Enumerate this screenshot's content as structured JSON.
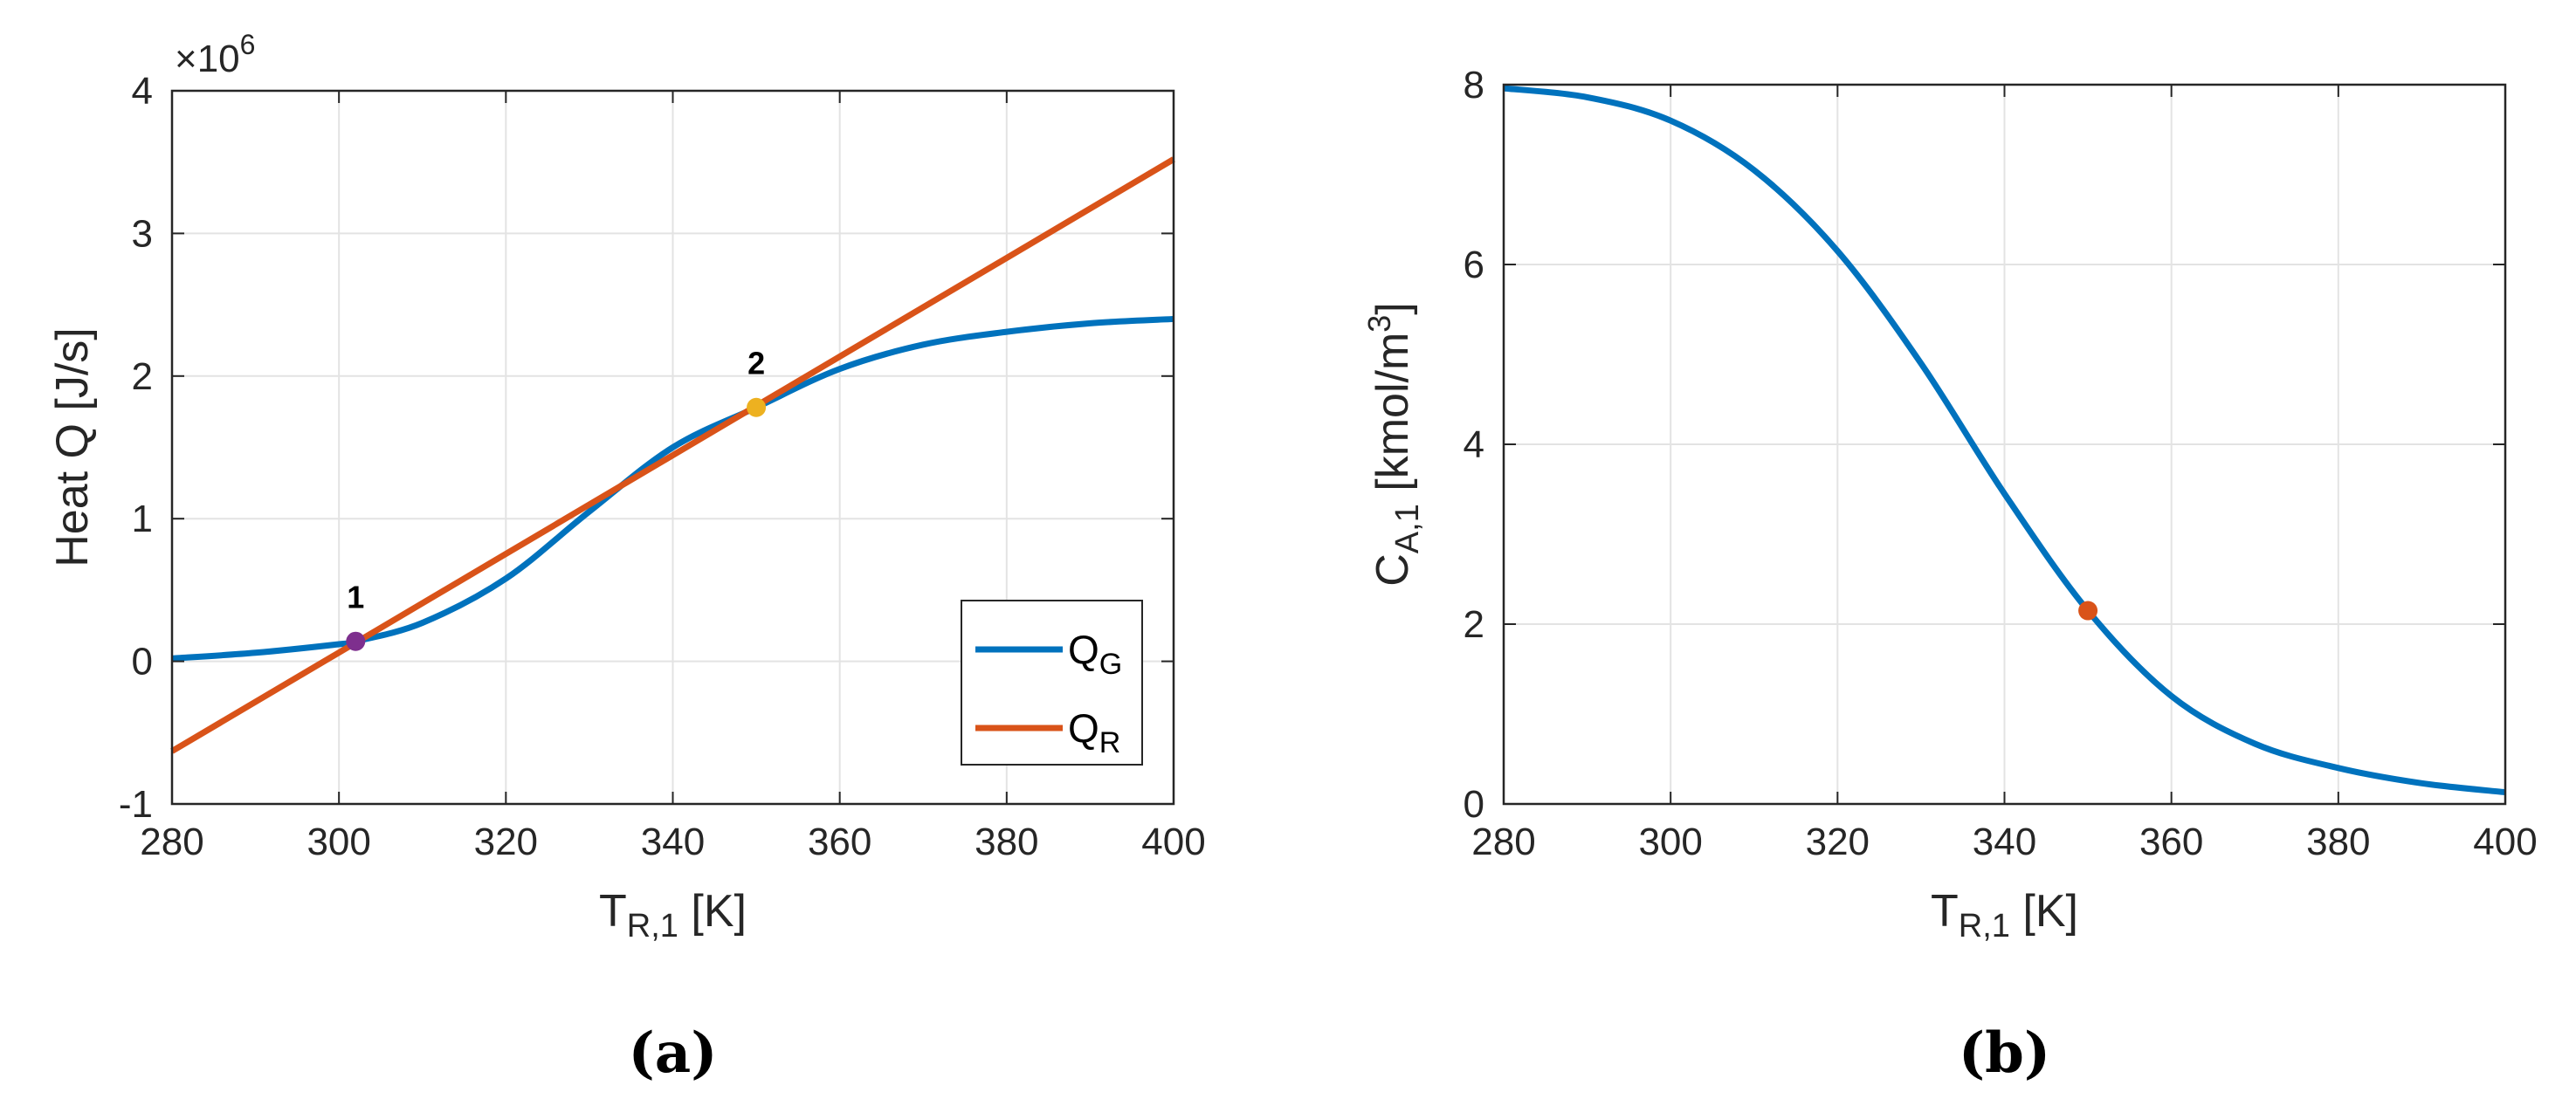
{
  "chart_data": [
    {
      "type": "line",
      "panel_label": "(a)",
      "xlabel": {
        "main": "T",
        "sub": "R,1",
        "unit": " [K]"
      },
      "ylabel": "Heat Q [J/s]",
      "y_exponent": {
        "base": "×10",
        "power": "6"
      },
      "xlim": [
        280,
        400
      ],
      "ylim": [
        -1,
        4
      ],
      "xticks": [
        280,
        300,
        320,
        340,
        360,
        380,
        400
      ],
      "yticks": [
        -1,
        0,
        1,
        2,
        3,
        4
      ],
      "grid": true,
      "legend_position": "bottom-right",
      "series": [
        {
          "name": "Q_G",
          "label_main": "Q",
          "label_sub": "G",
          "color": "#0072BD",
          "x": [
            280,
            290,
            300,
            302,
            310,
            320,
            330,
            340,
            350,
            360,
            370,
            380,
            390,
            400
          ],
          "values": [
            0.02,
            0.06,
            0.12,
            0.14,
            0.27,
            0.58,
            1.05,
            1.5,
            1.78,
            2.05,
            2.22,
            2.31,
            2.37,
            2.4
          ]
        },
        {
          "name": "Q_R",
          "label_main": "Q",
          "label_sub": "R",
          "color": "#D95319",
          "x": [
            280,
            400
          ],
          "values": [
            -0.63,
            3.52
          ]
        }
      ],
      "points": [
        {
          "label": "1",
          "x": 302,
          "y": 0.14,
          "color": "#7E2F8E"
        },
        {
          "label": "2",
          "x": 350,
          "y": 1.78,
          "color": "#EDB120"
        }
      ]
    },
    {
      "type": "line",
      "panel_label": "(b)",
      "xlabel": {
        "main": "T",
        "sub": "R,1",
        "unit": " [K]"
      },
      "ylabel": {
        "main": "C",
        "sub": "A,1",
        "unit_pre": " [kmol/m",
        "sup": "3",
        "unit_post": "]"
      },
      "xlim": [
        280,
        400
      ],
      "ylim": [
        0,
        8
      ],
      "xticks": [
        280,
        300,
        320,
        340,
        360,
        380,
        400
      ],
      "yticks": [
        0,
        2,
        4,
        6,
        8
      ],
      "grid": true,
      "series": [
        {
          "name": "C_A1",
          "color": "#0072BD",
          "x": [
            280,
            290,
            300,
            310,
            320,
            330,
            340,
            350,
            360,
            370,
            380,
            390,
            400
          ],
          "values": [
            7.96,
            7.86,
            7.6,
            7.05,
            6.15,
            4.9,
            3.45,
            2.15,
            1.2,
            0.67,
            0.4,
            0.23,
            0.13
          ]
        }
      ],
      "points": [
        {
          "label": "",
          "x": 350,
          "y": 2.15,
          "color": "#D95319"
        }
      ]
    }
  ]
}
